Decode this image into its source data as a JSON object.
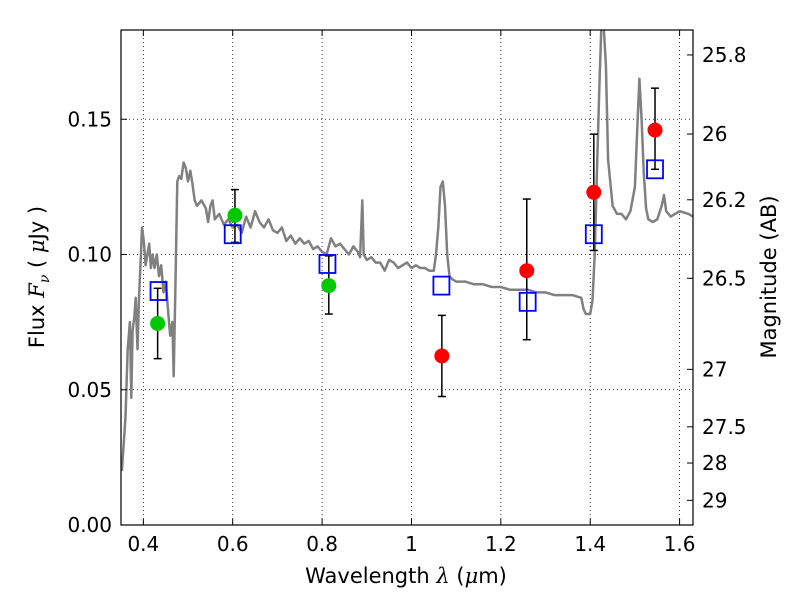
{
  "chart_data": {
    "type": "scatter",
    "xlabel": {
      "text": "Wavelength",
      "symbol": "λ",
      "unit_open": " (",
      "unit_mu": "μ",
      "unit_rest": "m)"
    },
    "ylabel": {
      "text": "Flux",
      "symbol": "F",
      "sub": "ν",
      "unit_open": "( ",
      "unit_mu": "μ",
      "unit_rest": "Jy )"
    },
    "y2label": "Magnitude (AB)",
    "xlim": [
      0.35,
      1.63
    ],
    "ylim": [
      0.0,
      0.183
    ],
    "grid": true,
    "x_ticks": [
      {
        "value": 0.4,
        "label": "0.4"
      },
      {
        "value": 0.6,
        "label": "0.6"
      },
      {
        "value": 0.8,
        "label": "0.8"
      },
      {
        "value": 1.0,
        "label": "1"
      },
      {
        "value": 1.2,
        "label": "1.2"
      },
      {
        "value": 1.4,
        "label": "1.4"
      },
      {
        "value": 1.6,
        "label": "1.6"
      }
    ],
    "y_ticks": [
      {
        "value": 0.0,
        "label": "0.00"
      },
      {
        "value": 0.05,
        "label": "0.05"
      },
      {
        "value": 0.1,
        "label": "0.10"
      },
      {
        "value": 0.15,
        "label": "0.15"
      }
    ],
    "y2_ticks": [
      {
        "value": 25.8,
        "label": "25.8"
      },
      {
        "value": 26.0,
        "label": "26"
      },
      {
        "value": 26.2,
        "label": "26.2"
      },
      {
        "value": 26.5,
        "label": "26.5"
      },
      {
        "value": 27.0,
        "label": "27"
      },
      {
        "value": 27.5,
        "label": "27.5"
      },
      {
        "value": 28.0,
        "label": "28"
      },
      {
        "value": 29.0,
        "label": "29"
      }
    ],
    "colors": {
      "sed": "#808080",
      "green": "#00c800",
      "red": "#ff0000",
      "model": "#0000ff",
      "error": "#000000"
    },
    "series": [
      {
        "kind": "line",
        "points": [
          [
            0.352,
            0.02
          ],
          [
            0.36,
            0.04
          ],
          [
            0.365,
            0.065
          ],
          [
            0.37,
            0.075
          ],
          [
            0.373,
            0.047
          ],
          [
            0.376,
            0.072
          ],
          [
            0.38,
            0.077
          ],
          [
            0.383,
            0.084
          ],
          [
            0.387,
            0.065
          ],
          [
            0.39,
            0.083
          ],
          [
            0.394,
            0.098
          ],
          [
            0.397,
            0.11
          ],
          [
            0.401,
            0.105
          ],
          [
            0.405,
            0.096
          ],
          [
            0.409,
            0.1
          ],
          [
            0.413,
            0.104
          ],
          [
            0.417,
            0.095
          ],
          [
            0.421,
            0.1
          ],
          [
            0.425,
            0.095
          ],
          [
            0.43,
            0.1
          ],
          [
            0.435,
            0.092
          ],
          [
            0.44,
            0.096
          ],
          [
            0.445,
            0.086
          ],
          [
            0.45,
            0.09
          ],
          [
            0.455,
            0.08
          ],
          [
            0.46,
            0.07
          ],
          [
            0.465,
            0.075
          ],
          [
            0.468,
            0.055
          ],
          [
            0.472,
            0.09
          ],
          [
            0.476,
            0.127
          ],
          [
            0.48,
            0.129
          ],
          [
            0.485,
            0.128
          ],
          [
            0.49,
            0.134
          ],
          [
            0.495,
            0.132
          ],
          [
            0.5,
            0.127
          ],
          [
            0.505,
            0.131
          ],
          [
            0.51,
            0.126
          ],
          [
            0.515,
            0.12
          ],
          [
            0.52,
            0.118
          ],
          [
            0.53,
            0.12
          ],
          [
            0.54,
            0.117
          ],
          [
            0.545,
            0.112
          ],
          [
            0.55,
            0.118
          ],
          [
            0.555,
            0.12
          ],
          [
            0.56,
            0.113
          ],
          [
            0.57,
            0.115
          ],
          [
            0.58,
            0.111
          ],
          [
            0.59,
            0.113
          ],
          [
            0.6,
            0.11
          ],
          [
            0.61,
            0.111
          ],
          [
            0.62,
            0.108
          ],
          [
            0.63,
            0.114
          ],
          [
            0.64,
            0.11
          ],
          [
            0.65,
            0.116
          ],
          [
            0.66,
            0.112
          ],
          [
            0.67,
            0.11
          ],
          [
            0.68,
            0.113
          ],
          [
            0.69,
            0.109
          ],
          [
            0.7,
            0.108
          ],
          [
            0.71,
            0.11
          ],
          [
            0.72,
            0.105
          ],
          [
            0.73,
            0.107
          ],
          [
            0.74,
            0.104
          ],
          [
            0.75,
            0.106
          ],
          [
            0.76,
            0.104
          ],
          [
            0.77,
            0.105
          ],
          [
            0.78,
            0.102
          ],
          [
            0.79,
            0.103
          ],
          [
            0.8,
            0.101
          ],
          [
            0.81,
            0.1
          ],
          [
            0.82,
            0.106
          ],
          [
            0.83,
            0.103
          ],
          [
            0.84,
            0.104
          ],
          [
            0.85,
            0.102
          ],
          [
            0.86,
            0.1
          ],
          [
            0.87,
            0.103
          ],
          [
            0.88,
            0.101
          ],
          [
            0.885,
            0.099
          ],
          [
            0.89,
            0.12
          ],
          [
            0.893,
            0.1
          ],
          [
            0.9,
            0.098
          ],
          [
            0.91,
            0.099
          ],
          [
            0.92,
            0.097
          ],
          [
            0.93,
            0.097
          ],
          [
            0.94,
            0.094
          ],
          [
            0.95,
            0.098
          ],
          [
            0.96,
            0.097
          ],
          [
            0.97,
            0.095
          ],
          [
            0.98,
            0.096
          ],
          [
            0.99,
            0.097
          ],
          [
            1.0,
            0.095
          ],
          [
            1.01,
            0.096
          ],
          [
            1.02,
            0.095
          ],
          [
            1.03,
            0.095
          ],
          [
            1.04,
            0.094
          ],
          [
            1.05,
            0.094
          ],
          [
            1.055,
            0.1
          ],
          [
            1.06,
            0.11
          ],
          [
            1.065,
            0.125
          ],
          [
            1.07,
            0.127
          ],
          [
            1.075,
            0.118
          ],
          [
            1.08,
            0.1
          ],
          [
            1.085,
            0.092
          ],
          [
            1.09,
            0.091
          ],
          [
            1.1,
            0.09
          ],
          [
            1.12,
            0.09
          ],
          [
            1.14,
            0.089
          ],
          [
            1.16,
            0.089
          ],
          [
            1.18,
            0.088
          ],
          [
            1.2,
            0.088
          ],
          [
            1.22,
            0.087
          ],
          [
            1.24,
            0.087
          ],
          [
            1.26,
            0.087
          ],
          [
            1.28,
            0.086
          ],
          [
            1.3,
            0.086
          ],
          [
            1.32,
            0.085
          ],
          [
            1.34,
            0.085
          ],
          [
            1.36,
            0.085
          ],
          [
            1.38,
            0.084
          ],
          [
            1.385,
            0.08
          ],
          [
            1.39,
            0.078
          ],
          [
            1.4,
            0.078
          ],
          [
            1.405,
            0.083
          ],
          [
            1.41,
            0.1
          ],
          [
            1.415,
            0.13
          ],
          [
            1.42,
            0.16
          ],
          [
            1.425,
            0.185
          ],
          [
            1.43,
            0.185
          ],
          [
            1.435,
            0.17
          ],
          [
            1.44,
            0.135
          ],
          [
            1.45,
            0.118
          ],
          [
            1.46,
            0.115
          ],
          [
            1.47,
            0.115
          ],
          [
            1.48,
            0.113
          ],
          [
            1.49,
            0.116
          ],
          [
            1.5,
            0.125
          ],
          [
            1.505,
            0.145
          ],
          [
            1.51,
            0.165
          ],
          [
            1.515,
            0.15
          ],
          [
            1.52,
            0.13
          ],
          [
            1.525,
            0.117
          ],
          [
            1.53,
            0.113
          ],
          [
            1.54,
            0.112
          ],
          [
            1.55,
            0.113
          ],
          [
            1.56,
            0.118
          ],
          [
            1.565,
            0.122
          ],
          [
            1.57,
            0.116
          ],
          [
            1.58,
            0.114
          ],
          [
            1.6,
            0.116
          ],
          [
            1.62,
            0.115
          ],
          [
            1.63,
            0.114
          ]
        ]
      },
      {
        "kind": "points",
        "marker": "circle",
        "color": "green",
        "points": [
          [
            0.432,
            0.0745
          ],
          [
            0.605,
            0.1145
          ],
          [
            0.815,
            0.0885
          ]
        ],
        "yerr": [
          [
            0.0615,
            0.0875
          ],
          [
            0.1045,
            0.124
          ],
          [
            0.078,
            0.0995
          ]
        ]
      },
      {
        "kind": "points",
        "marker": "circle",
        "color": "red",
        "points": [
          [
            1.068,
            0.0625
          ],
          [
            1.258,
            0.094
          ],
          [
            1.408,
            0.123
          ],
          [
            1.545,
            0.146
          ]
        ],
        "yerr": [
          [
            0.0475,
            0.0775
          ],
          [
            0.0685,
            0.1205
          ],
          [
            0.1015,
            0.1445
          ],
          [
            0.1315,
            0.1615
          ]
        ]
      },
      {
        "kind": "points",
        "marker": "square",
        "color": "model",
        "points": [
          [
            0.434,
            0.0865
          ],
          [
            0.6,
            0.1075
          ],
          [
            0.812,
            0.0965
          ],
          [
            1.067,
            0.0885
          ],
          [
            1.26,
            0.0825
          ],
          [
            1.408,
            0.1075
          ],
          [
            1.545,
            0.1315
          ]
        ]
      }
    ]
  }
}
